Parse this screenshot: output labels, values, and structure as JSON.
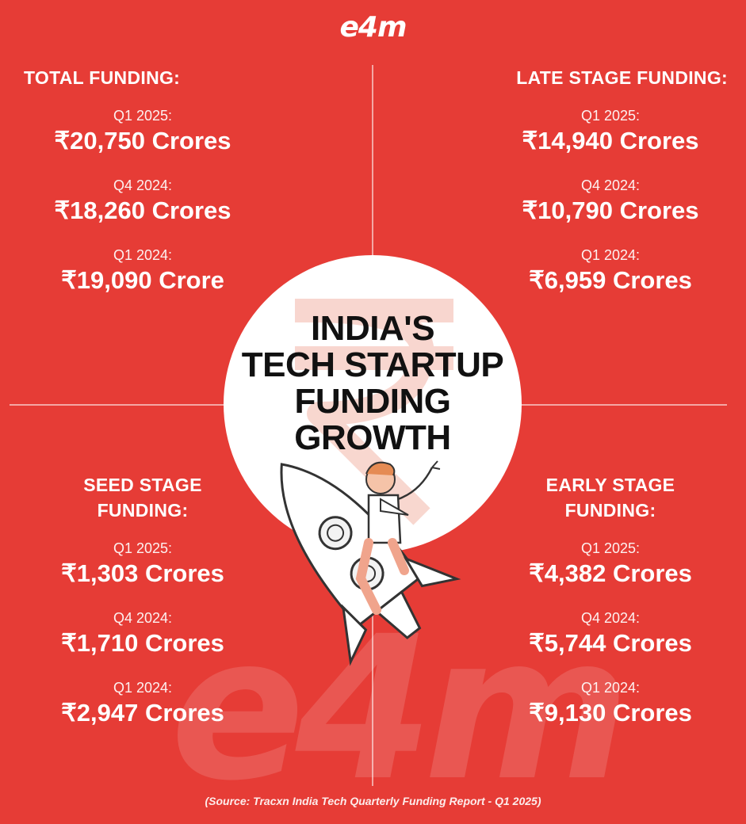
{
  "logo": "e4m",
  "watermark": "e4m",
  "title_lines": [
    "INDIA'S",
    "TECH STARTUP",
    "FUNDING",
    "GROWTH"
  ],
  "quadrants": {
    "total": {
      "heading_lines": [
        "TOTAL FUNDING:"
      ],
      "entries": [
        {
          "period": "Q1 2025:",
          "amount": "₹20,750 Crores"
        },
        {
          "period": "Q4 2024:",
          "amount": "₹18,260 Crores"
        },
        {
          "period": "Q1 2024:",
          "amount": "₹19,090 Crore"
        }
      ]
    },
    "late": {
      "heading_lines": [
        "LATE STAGE FUNDING:"
      ],
      "entries": [
        {
          "period": "Q1 2025:",
          "amount": "₹14,940 Crores"
        },
        {
          "period": "Q4 2024:",
          "amount": "₹10,790 Crores"
        },
        {
          "period": "Q1 2024:",
          "amount": "₹6,959 Crores"
        }
      ]
    },
    "seed": {
      "heading_lines": [
        "SEED STAGE",
        "FUNDING:"
      ],
      "entries": [
        {
          "period": "Q1 2025:",
          "amount": "₹1,303 Crores"
        },
        {
          "period": "Q4 2024:",
          "amount": "₹1,710 Crores"
        },
        {
          "period": "Q1 2024:",
          "amount": "₹2,947 Crores"
        }
      ]
    },
    "early": {
      "heading_lines": [
        "EARLY STAGE",
        "FUNDING:"
      ],
      "entries": [
        {
          "period": "Q1 2025:",
          "amount": "₹4,382 Crores"
        },
        {
          "period": "Q4 2024:",
          "amount": "₹5,744 Crores"
        },
        {
          "period": "Q1 2024:",
          "amount": "₹9,130 Crores"
        }
      ]
    }
  },
  "source": "(Source: Tracxn India Tech Quarterly Funding Report - Q1 2025)",
  "colors": {
    "background": "#e63c36",
    "circle": "#ffffff",
    "title": "#111111"
  },
  "icons": [
    "rupee-symbol-graphic",
    "rocket-illustration",
    "businessman-illustration"
  ]
}
